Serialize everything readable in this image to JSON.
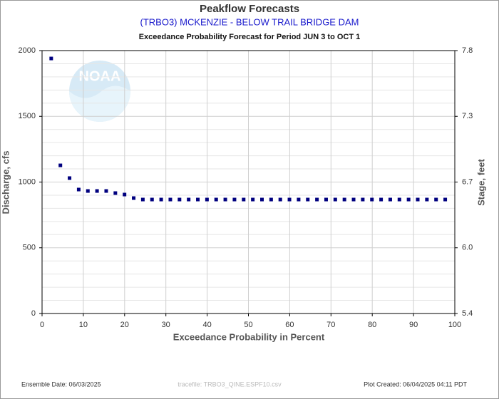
{
  "chart_data": {
    "type": "scatter",
    "title": "Peakflow Forecasts",
    "subtitle": "(TRBO3) MCKENZIE - BELOW TRAIL BRIDGE DAM",
    "caption": "Exceedance Probability Forecast for Period JUN 3 to OCT 1",
    "x_label": "Exceedance Probability in Percent",
    "y_label": "Discharge, cfs",
    "y2_label": "Stage, feet",
    "watermark": "NOAA",
    "footer_left": "Ensemble Date: 06/03/2025",
    "footer_center": "tracefile: TRBO3_QINE.ESPF10.csv",
    "footer_right": "Plot Created: 06/04/2025 04:11 PDT",
    "color": "#00007f",
    "grid": true,
    "xlim": [
      0,
      100
    ],
    "xticks": [
      0,
      10,
      20,
      30,
      40,
      50,
      60,
      70,
      80,
      90,
      100
    ],
    "ylim": [
      0,
      2000
    ],
    "yticks": [
      0,
      500,
      1000,
      1500,
      2000
    ],
    "yminorticks": [
      100,
      200,
      300,
      400,
      600,
      700,
      800,
      900,
      1100,
      1200,
      1300,
      1400,
      1600,
      1700,
      1800,
      1900
    ],
    "y2ticks": [
      5.4,
      {
        "value": 6,
        "label": "6.0"
      },
      6.7,
      7.3,
      7.8
    ],
    "x": [
      2.22,
      4.44,
      6.66,
      8.88,
      11.1,
      13.32,
      15.54,
      17.76,
      19.98,
      22.2,
      24.42,
      26.64,
      28.86,
      31.08,
      33.3,
      35.52,
      37.74,
      39.96,
      42.18,
      44.4,
      46.62,
      48.84,
      51.06,
      53.28,
      55.5,
      57.72,
      59.94,
      62.16,
      64.38,
      66.6,
      68.82,
      71.04,
      73.26,
      75.48,
      77.7,
      79.92,
      82.14,
      84.36,
      86.58,
      88.8,
      91.02,
      93.24,
      95.46,
      97.68
    ],
    "values": [
      1940,
      1127,
      1030,
      943,
      932,
      932,
      932,
      916,
      905,
      878,
      867,
      867,
      867,
      867,
      867,
      867,
      867,
      867,
      867,
      867,
      867,
      867,
      867,
      867,
      867,
      867,
      867,
      867,
      867,
      867,
      867,
      867,
      867,
      867,
      867,
      867,
      867,
      867,
      867,
      867,
      867,
      867,
      867,
      867
    ]
  }
}
